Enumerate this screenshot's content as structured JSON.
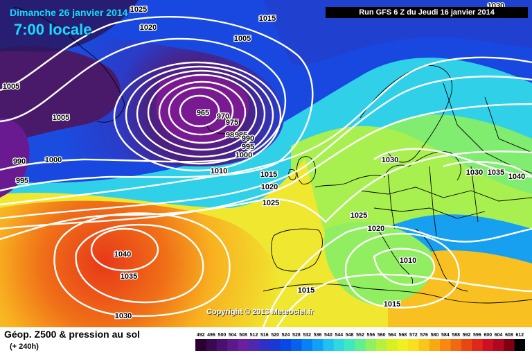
{
  "header": {
    "date": "Dimanche 26 janvier 2014",
    "time": "7:00 locale",
    "run": "Run GFS 6 Z du Jeudi 16 janvier 2014"
  },
  "copyright": "Copyright © 2013 Meteociel.fr",
  "footer": {
    "title": "Géop. Z500 & pression au sol",
    "subtitle": "(+ 240h)"
  },
  "scale_ticks": [
    "492",
    "496",
    "500",
    "504",
    "508",
    "512",
    "516",
    "520",
    "524",
    "528",
    "532",
    "536",
    "540",
    "544",
    "548",
    "552",
    "556",
    "560",
    "564",
    "568",
    "572",
    "576",
    "580",
    "584",
    "588",
    "592",
    "596",
    "600",
    "604",
    "608",
    "612"
  ],
  "scale_colors": [
    "#2a0030",
    "#3a0850",
    "#4a1070",
    "#5a1a8a",
    "#6a20a0",
    "#5028b0",
    "#3030c8",
    "#1838d8",
    "#0848e8",
    "#0860f0",
    "#0880f8",
    "#10a0f8",
    "#20c0f0",
    "#30d8e0",
    "#40e8c0",
    "#60f090",
    "#90f060",
    "#b8f040",
    "#d8f020",
    "#f0f020",
    "#f8e020",
    "#f8c818",
    "#f8a810",
    "#f88810",
    "#f06810",
    "#e84810",
    "#e02818",
    "#d01020",
    "#b00820",
    "#800010",
    "#000000"
  ],
  "pressure_labels": [
    "1025",
    "1020",
    "1015",
    "1005",
    "1005",
    "1005",
    "965",
    "970",
    "975",
    "98",
    "985",
    "990",
    "995",
    "1000",
    "1000",
    "990",
    "995",
    "1010",
    "1015",
    "1020",
    "1025",
    "1030",
    "1030",
    "1035",
    "1040",
    "1025",
    "1020",
    "1010",
    "1040",
    "1035",
    "1030",
    "1015",
    "1015",
    "1030"
  ]
}
